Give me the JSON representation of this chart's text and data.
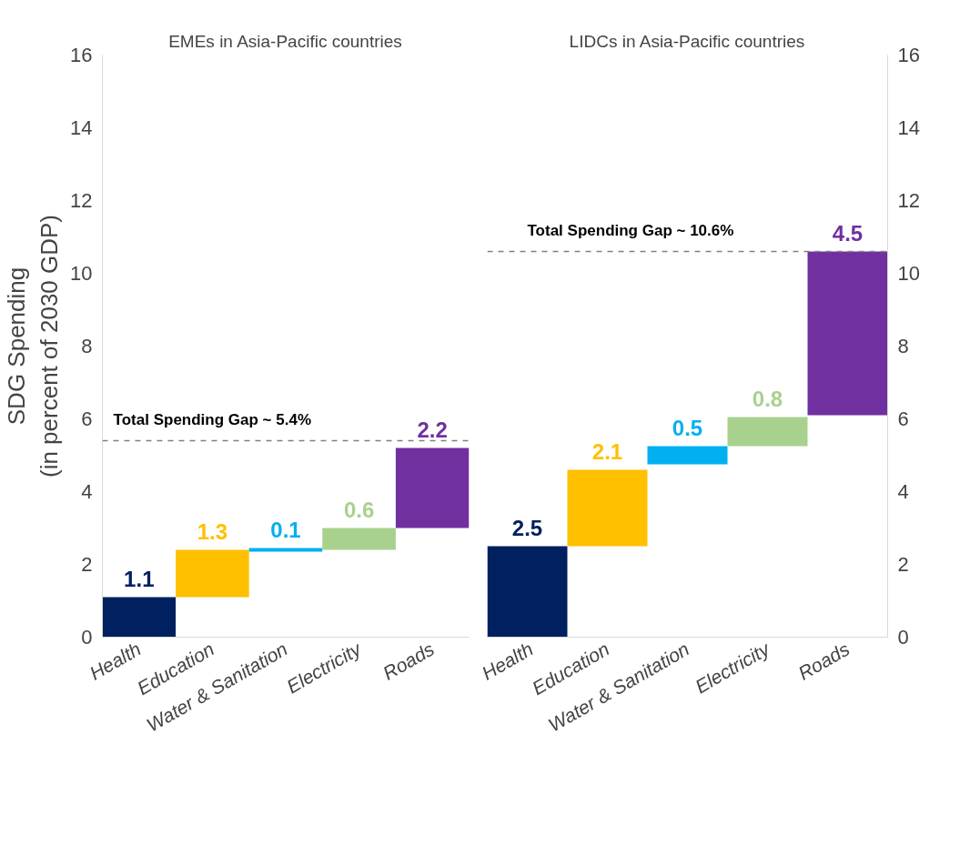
{
  "chart_data": [
    {
      "type": "bar",
      "title": "EMEs in Asia-Pacific countries",
      "ylabel": "SDG Spending\n(in percent of 2030 GDP)",
      "categories": [
        "Health",
        "Education",
        "Water & Sanitation",
        "Electricity",
        "Roads"
      ],
      "values": [
        1.1,
        1.3,
        0.1,
        0.6,
        2.2
      ],
      "base": [
        0,
        1.1,
        2.35,
        2.4,
        3.0
      ],
      "colors": [
        "#002060",
        "#ffc000",
        "#00b0f0",
        "#a9d18e",
        "#7030a0"
      ],
      "ylim": [
        0,
        16
      ],
      "yticks": [
        0,
        2,
        4,
        6,
        8,
        10,
        12,
        14,
        16
      ],
      "ref_lines": [
        {
          "axis": "y",
          "value": 5.4,
          "label": "Total Spending Gap ~ 5.4%",
          "color": "#808080",
          "line_style": "dashed"
        }
      ],
      "data_labels": true,
      "grid": false
    },
    {
      "type": "bar",
      "title": "LIDCs in Asia-Pacific countries",
      "categories": [
        "Health",
        "Education",
        "Water & Sanitation",
        "Electricity",
        "Roads"
      ],
      "values": [
        2.5,
        2.1,
        0.5,
        0.8,
        4.5
      ],
      "base": [
        0,
        2.5,
        4.75,
        5.25,
        6.1
      ],
      "colors": [
        "#002060",
        "#ffc000",
        "#00b0f0",
        "#a9d18e",
        "#7030a0"
      ],
      "ylim": [
        0,
        16
      ],
      "yticks": [
        0,
        2,
        4,
        6,
        8,
        10,
        12,
        14,
        16
      ],
      "ref_lines": [
        {
          "axis": "y",
          "value": 10.6,
          "label": "Total Spending Gap ~ 10.6%",
          "color": "#808080",
          "line_style": "dashed"
        }
      ],
      "data_labels": true,
      "grid": false
    }
  ]
}
